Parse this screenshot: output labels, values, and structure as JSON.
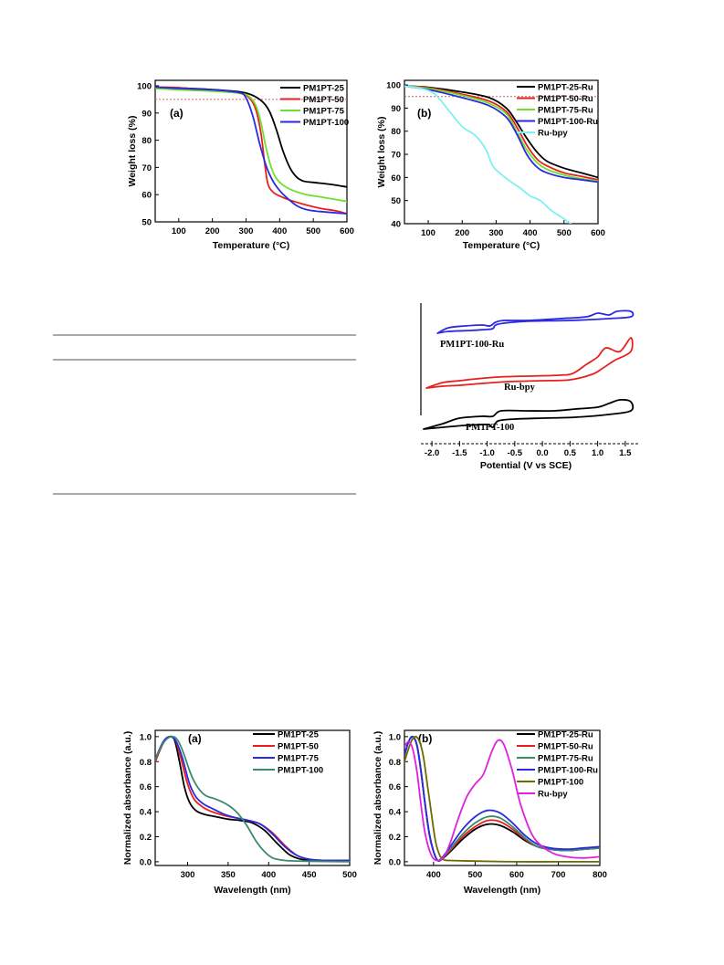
{
  "colors": {
    "black": "#000000",
    "red": "#e8201c",
    "green": "#6de02a",
    "blue": "#2a2ae0",
    "cyan": "#7ff0f0",
    "teal": "#3a8a6e",
    "olive": "#6b6b00",
    "magenta": "#e020e0",
    "refline": "#d06060"
  },
  "chart_data": [
    {
      "id": "tga-a",
      "type": "line",
      "panel_label": "(a)",
      "xlabel": "Temperature (°C)",
      "ylabel": "Weight loss (%)",
      "xlim": [
        30,
        600
      ],
      "ylim": [
        50,
        102
      ],
      "xticks": [
        100,
        200,
        300,
        400,
        500,
        600
      ],
      "yticks": [
        50,
        60,
        70,
        80,
        90,
        100
      ],
      "reference_line": 95,
      "legend_position": "top-right",
      "series": [
        {
          "name": "PM1PT-25",
          "color": "black",
          "x": [
            30,
            100,
            200,
            280,
            320,
            350,
            370,
            390,
            410,
            430,
            450,
            470,
            500,
            550,
            600
          ],
          "y": [
            99.5,
            99.2,
            98.6,
            97.8,
            96.5,
            94.0,
            90.5,
            84.0,
            76.0,
            70.0,
            66.5,
            65.0,
            64.5,
            63.8,
            62.8
          ]
        },
        {
          "name": "PM1PT-50",
          "color": "red",
          "x": [
            30,
            100,
            200,
            280,
            310,
            330,
            345,
            355,
            365,
            380,
            400,
            430,
            470,
            520,
            570,
            600
          ],
          "y": [
            99.5,
            99.3,
            98.2,
            97.3,
            95.5,
            91.0,
            82.0,
            72.0,
            64.0,
            61.0,
            59.5,
            58.0,
            56.5,
            55.0,
            54.0,
            53.0
          ]
        },
        {
          "name": "PM1PT-75",
          "color": "green",
          "x": [
            30,
            100,
            200,
            280,
            310,
            330,
            345,
            360,
            375,
            390,
            410,
            440,
            480,
            530,
            600
          ],
          "y": [
            99.0,
            98.5,
            98.0,
            97.3,
            96.0,
            92.5,
            86.0,
            77.0,
            70.0,
            66.0,
            63.5,
            61.5,
            60.0,
            59.0,
            57.5
          ]
        },
        {
          "name": "PM1PT-100",
          "color": "blue",
          "x": [
            30,
            100,
            200,
            280,
            300,
            320,
            340,
            360,
            380,
            400,
            420,
            450,
            480,
            520,
            600
          ],
          "y": [
            99.5,
            99.0,
            98.5,
            97.5,
            95.5,
            89.0,
            79.0,
            70.5,
            65.0,
            61.5,
            59.0,
            56.0,
            54.5,
            53.8,
            53.0
          ]
        }
      ]
    },
    {
      "id": "tga-b",
      "type": "line",
      "panel_label": "(b)",
      "xlabel": "Temperature (°C)",
      "ylabel": "Weight loss (%)",
      "xlim": [
        30,
        600
      ],
      "ylim": [
        40,
        102
      ],
      "xticks": [
        100,
        200,
        300,
        400,
        500,
        600
      ],
      "yticks": [
        40,
        50,
        60,
        70,
        80,
        90,
        100
      ],
      "reference_line": 95,
      "legend_position": "top-right",
      "series": [
        {
          "name": "PM1PT-25-Ru",
          "color": "black",
          "x": [
            30,
            100,
            200,
            280,
            330,
            360,
            390,
            420,
            450,
            500,
            550,
            600
          ],
          "y": [
            99.5,
            99.0,
            97.0,
            94.5,
            90.0,
            84.0,
            77.0,
            71.0,
            67.0,
            64.0,
            62.0,
            60.0
          ]
        },
        {
          "name": "PM1PT-50-Ru",
          "color": "red",
          "x": [
            30,
            100,
            200,
            280,
            330,
            360,
            390,
            420,
            450,
            500,
            550,
            600
          ],
          "y": [
            99.5,
            98.8,
            96.0,
            93.0,
            88.5,
            82.0,
            74.0,
            68.0,
            65.0,
            62.0,
            60.5,
            59.0
          ]
        },
        {
          "name": "PM1PT-75-Ru",
          "color": "green",
          "x": [
            30,
            100,
            200,
            280,
            330,
            360,
            390,
            420,
            450,
            500,
            550,
            600
          ],
          "y": [
            99.5,
            98.5,
            95.5,
            92.0,
            87.5,
            80.0,
            72.0,
            66.5,
            63.5,
            61.0,
            59.5,
            58.5
          ]
        },
        {
          "name": "PM1PT-100-Ru",
          "color": "blue",
          "x": [
            30,
            100,
            200,
            280,
            330,
            360,
            390,
            420,
            450,
            500,
            550,
            600
          ],
          "y": [
            99.5,
            98.0,
            94.5,
            91.0,
            86.0,
            79.0,
            70.0,
            64.5,
            62.0,
            60.0,
            59.0,
            58.0
          ]
        },
        {
          "name": "Ru-bpy",
          "color": "cyan",
          "x": [
            30,
            80,
            120,
            160,
            200,
            240,
            270,
            290,
            310,
            340,
            370,
            400,
            430,
            460,
            490,
            520
          ],
          "y": [
            99.5,
            98.5,
            96.0,
            89.0,
            82.0,
            78.0,
            72.0,
            65.0,
            62.0,
            58.5,
            55.5,
            52.0,
            50.0,
            46.0,
            43.0,
            40.0
          ]
        }
      ]
    },
    {
      "id": "cv",
      "type": "line",
      "xlabel": "Potential (V vs SCE)",
      "xlim": [
        -2.2,
        1.75
      ],
      "xticks": [
        -2.0,
        -1.5,
        -1.0,
        -0.5,
        0.0,
        0.5,
        1.0,
        1.5
      ],
      "xtick_labels": [
        "-2.0",
        "-1.5",
        "-1.0",
        "-0.5",
        "0.0",
        "0.5",
        "1.0",
        "1.5"
      ],
      "series": [
        {
          "name": "PM1PT-100-Ru",
          "color": "blue"
        },
        {
          "name": "Ru-bpy",
          "color": "red"
        },
        {
          "name": "PM1PT-100",
          "color": "black"
        }
      ]
    },
    {
      "id": "abs-a",
      "type": "line",
      "panel_label": "(a)",
      "xlabel": "Wavelength (nm)",
      "ylabel": "Normalized absorbance (a.u.)",
      "xlim": [
        260,
        500
      ],
      "ylim": [
        -0.03,
        1.05
      ],
      "xticks": [
        300,
        350,
        400,
        450,
        500
      ],
      "yticks": [
        0.0,
        0.2,
        0.4,
        0.6,
        0.8,
        1.0
      ],
      "ytick_labels": [
        "0.0",
        "0.2",
        "0.4",
        "0.6",
        "0.8",
        "1.0"
      ],
      "legend_position": "top-right",
      "series": [
        {
          "name": "PM1PT-25",
          "color": "black",
          "x": [
            260,
            270,
            278,
            284,
            290,
            296,
            302,
            310,
            320,
            335,
            350,
            365,
            380,
            395,
            410,
            425,
            440,
            460,
            500
          ],
          "y": [
            0.8,
            0.95,
            1.0,
            0.97,
            0.8,
            0.6,
            0.48,
            0.41,
            0.38,
            0.36,
            0.34,
            0.33,
            0.31,
            0.25,
            0.15,
            0.06,
            0.02,
            0.01,
            0.01
          ]
        },
        {
          "name": "PM1PT-50",
          "color": "red",
          "x": [
            260,
            270,
            278,
            285,
            292,
            300,
            308,
            318,
            330,
            345,
            360,
            375,
            390,
            405,
            420,
            435,
            450,
            470,
            500
          ],
          "y": [
            0.8,
            0.95,
            1.0,
            0.97,
            0.82,
            0.62,
            0.5,
            0.44,
            0.4,
            0.37,
            0.35,
            0.33,
            0.3,
            0.23,
            0.13,
            0.05,
            0.02,
            0.01,
            0.01
          ]
        },
        {
          "name": "PM1PT-75",
          "color": "blue",
          "x": [
            260,
            270,
            278,
            286,
            294,
            302,
            310,
            320,
            332,
            345,
            360,
            375,
            390,
            405,
            420,
            435,
            450,
            470,
            500
          ],
          "y": [
            0.82,
            0.96,
            1.0,
            0.96,
            0.82,
            0.63,
            0.52,
            0.46,
            0.42,
            0.38,
            0.35,
            0.33,
            0.3,
            0.22,
            0.12,
            0.05,
            0.02,
            0.01,
            0.01
          ]
        },
        {
          "name": "PM1PT-100",
          "color": "teal",
          "x": [
            260,
            270,
            280,
            288,
            296,
            304,
            312,
            322,
            335,
            348,
            360,
            372,
            385,
            395,
            405,
            420,
            440,
            500
          ],
          "y": [
            0.82,
            0.95,
            1.0,
            0.97,
            0.85,
            0.7,
            0.6,
            0.53,
            0.5,
            0.46,
            0.4,
            0.3,
            0.16,
            0.08,
            0.03,
            0.01,
            0.005,
            0.0
          ]
        }
      ]
    },
    {
      "id": "abs-b",
      "type": "line",
      "panel_label": "(b)",
      "xlabel": "Wavelength (nm)",
      "ylabel": "Normalized absorbance (a.u.)",
      "xlim": [
        330,
        800
      ],
      "ylim": [
        -0.03,
        1.05
      ],
      "xticks": [
        400,
        500,
        600,
        700,
        800
      ],
      "yticks": [
        0.0,
        0.2,
        0.4,
        0.6,
        0.8,
        1.0
      ],
      "ytick_labels": [
        "0.0",
        "0.2",
        "0.4",
        "0.6",
        "0.8",
        "1.0"
      ],
      "legend_position": "top-right",
      "series": [
        {
          "name": "PM1PT-25-Ru",
          "color": "black",
          "x": [
            330,
            340,
            350,
            360,
            370,
            380,
            390,
            400,
            410,
            420,
            440,
            470,
            500,
            530,
            560,
            590,
            620,
            650,
            680,
            720,
            760,
            800
          ],
          "y": [
            0.85,
            0.96,
            1.0,
            0.93,
            0.72,
            0.45,
            0.22,
            0.08,
            0.01,
            0.02,
            0.08,
            0.18,
            0.26,
            0.3,
            0.29,
            0.24,
            0.17,
            0.12,
            0.1,
            0.09,
            0.1,
            0.11
          ]
        },
        {
          "name": "PM1PT-50-Ru",
          "color": "red",
          "x": [
            330,
            340,
            350,
            360,
            370,
            380,
            390,
            400,
            410,
            420,
            440,
            470,
            500,
            530,
            560,
            590,
            620,
            650,
            680,
            720,
            760,
            800
          ],
          "y": [
            0.85,
            0.96,
            1.0,
            0.93,
            0.72,
            0.45,
            0.22,
            0.08,
            0.01,
            0.03,
            0.09,
            0.2,
            0.28,
            0.33,
            0.32,
            0.26,
            0.18,
            0.12,
            0.1,
            0.09,
            0.1,
            0.11
          ]
        },
        {
          "name": "PM1PT-75-Ru",
          "color": "teal",
          "x": [
            330,
            340,
            350,
            360,
            370,
            380,
            390,
            400,
            410,
            420,
            440,
            470,
            500,
            530,
            560,
            590,
            620,
            650,
            680,
            720,
            760,
            800
          ],
          "y": [
            0.85,
            0.96,
            1.0,
            0.93,
            0.72,
            0.45,
            0.22,
            0.08,
            0.01,
            0.03,
            0.1,
            0.22,
            0.31,
            0.36,
            0.35,
            0.28,
            0.19,
            0.12,
            0.1,
            0.09,
            0.1,
            0.11
          ]
        },
        {
          "name": "PM1PT-100-Ru",
          "color": "blue",
          "x": [
            330,
            340,
            350,
            360,
            370,
            380,
            390,
            400,
            410,
            420,
            440,
            470,
            500,
            530,
            560,
            590,
            620,
            650,
            680,
            720,
            760,
            800
          ],
          "y": [
            0.85,
            0.96,
            1.0,
            0.93,
            0.72,
            0.45,
            0.22,
            0.08,
            0.01,
            0.03,
            0.12,
            0.26,
            0.36,
            0.41,
            0.39,
            0.31,
            0.21,
            0.14,
            0.11,
            0.1,
            0.11,
            0.12
          ]
        },
        {
          "name": "PM1PT-100",
          "color": "olive",
          "x": [
            330,
            345,
            355,
            365,
            375,
            385,
            395,
            405,
            415,
            425,
            440,
            500,
            600,
            700,
            800
          ],
          "y": [
            0.8,
            0.95,
            1.0,
            0.97,
            0.85,
            0.62,
            0.38,
            0.16,
            0.05,
            0.015,
            0.01,
            0.005,
            0.0,
            0.0,
            0.0
          ]
        },
        {
          "name": "Ru-bpy",
          "color": "magenta",
          "x": [
            330,
            340,
            350,
            360,
            370,
            380,
            395,
            410,
            425,
            440,
            460,
            480,
            500,
            520,
            540,
            555,
            570,
            590,
            610,
            640,
            680,
            720,
            760,
            800
          ],
          "y": [
            0.92,
            0.96,
            0.9,
            0.72,
            0.45,
            0.22,
            0.05,
            0.01,
            0.04,
            0.15,
            0.35,
            0.52,
            0.62,
            0.7,
            0.88,
            0.97,
            0.93,
            0.72,
            0.45,
            0.2,
            0.08,
            0.04,
            0.03,
            0.04
          ]
        }
      ]
    }
  ]
}
